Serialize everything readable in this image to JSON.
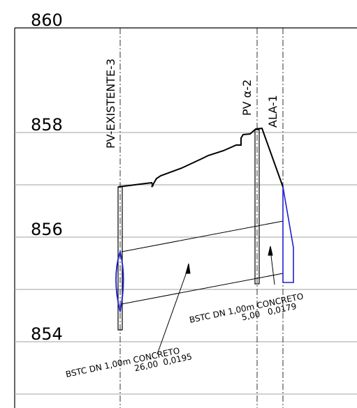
{
  "elevations": [
    "860",
    "858",
    "856",
    "854"
  ],
  "structures": {
    "pv_existente": "PV-EXISTENTE-3",
    "pv_alpha": "PV α-2",
    "ala": "ALA-1"
  },
  "pipe_left": {
    "spec": "BSTC  DN  1,00m  CONCRETO",
    "length": "26,00",
    "slope": "0,0195"
  },
  "pipe_right": {
    "spec": "BSTC  DN  1,00m  CONCRETO",
    "length": "5,00",
    "slope": "0,0179"
  },
  "colors": {
    "line": "#000000",
    "grid": "#a0a0a0",
    "channel": "#1f1fd0"
  }
}
